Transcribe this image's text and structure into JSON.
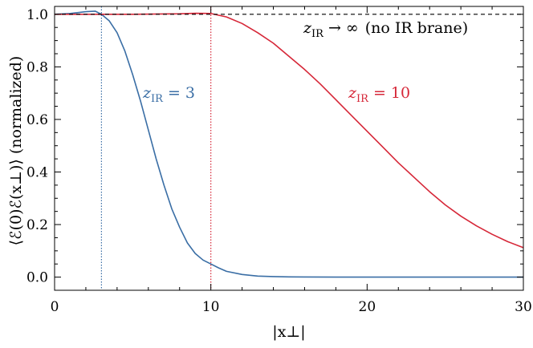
{
  "chart_data": {
    "type": "line",
    "title": "",
    "xlabel": "|x⊥|",
    "ylabel": "⟨ℰ(0)ℰ(x⊥)⟩ (normalized)",
    "xlim": [
      0,
      30
    ],
    "ylim": [
      -0.05,
      1.03
    ],
    "x_major_ticks": [
      0,
      10,
      20,
      30
    ],
    "x_tick_labels": [
      "0",
      "10",
      "20",
      "30"
    ],
    "y_major_ticks": [
      0.0,
      0.2,
      0.4,
      0.6,
      0.8,
      1.0
    ],
    "y_tick_labels": [
      "0.0",
      "0.2",
      "0.4",
      "0.6",
      "0.8",
      "1.0"
    ],
    "grid": false,
    "legend": "none",
    "series": [
      {
        "label_var": "z",
        "label_sub": "IR",
        "label_rel": "=",
        "label_val": "3",
        "color": "#3a6ea5",
        "style": "solid",
        "x": [
          0,
          1,
          2,
          2.6,
          3,
          3.5,
          4,
          4.5,
          5,
          5.5,
          6,
          6.5,
          7,
          7.5,
          8,
          8.5,
          9,
          9.5,
          10,
          10.5,
          11,
          12,
          13,
          14,
          15,
          16,
          18,
          20,
          25,
          30
        ],
        "y": [
          1.0,
          1.003,
          1.01,
          1.012,
          1.0,
          0.975,
          0.93,
          0.86,
          0.77,
          0.67,
          0.56,
          0.45,
          0.35,
          0.26,
          0.19,
          0.13,
          0.09,
          0.065,
          0.05,
          0.035,
          0.022,
          0.01,
          0.004,
          0.002,
          0.001,
          0.0005,
          0.0,
          0.0,
          0.0,
          0.0
        ]
      },
      {
        "label_var": "z",
        "label_sub": "IR",
        "label_rel": "=",
        "label_val": "10",
        "color": "#d62738",
        "style": "solid",
        "x": [
          0,
          5,
          8,
          9,
          10,
          11,
          12,
          13,
          14,
          15,
          16,
          17,
          18,
          19,
          20,
          21,
          22,
          23,
          24,
          25,
          26,
          27,
          28,
          29,
          30
        ],
        "y": [
          1.0,
          1.0,
          1.002,
          1.004,
          1.003,
          0.99,
          0.965,
          0.93,
          0.89,
          0.84,
          0.79,
          0.735,
          0.675,
          0.615,
          0.555,
          0.495,
          0.435,
          0.38,
          0.325,
          0.275,
          0.232,
          0.195,
          0.163,
          0.135,
          0.112
        ]
      },
      {
        "label_var": "z",
        "label_sub": "IR",
        "label_rel": "→",
        "label_val": "∞",
        "label_extra": "(no IR brane)",
        "color": "#000000",
        "style": "dashed",
        "x": [
          0,
          30
        ],
        "y": [
          1.0,
          1.0
        ]
      }
    ],
    "vertical_lines": [
      {
        "x": 3,
        "color": "#3a6ea5",
        "style": "dotted"
      },
      {
        "x": 10,
        "color": "#d62738",
        "style": "dotted"
      }
    ]
  }
}
